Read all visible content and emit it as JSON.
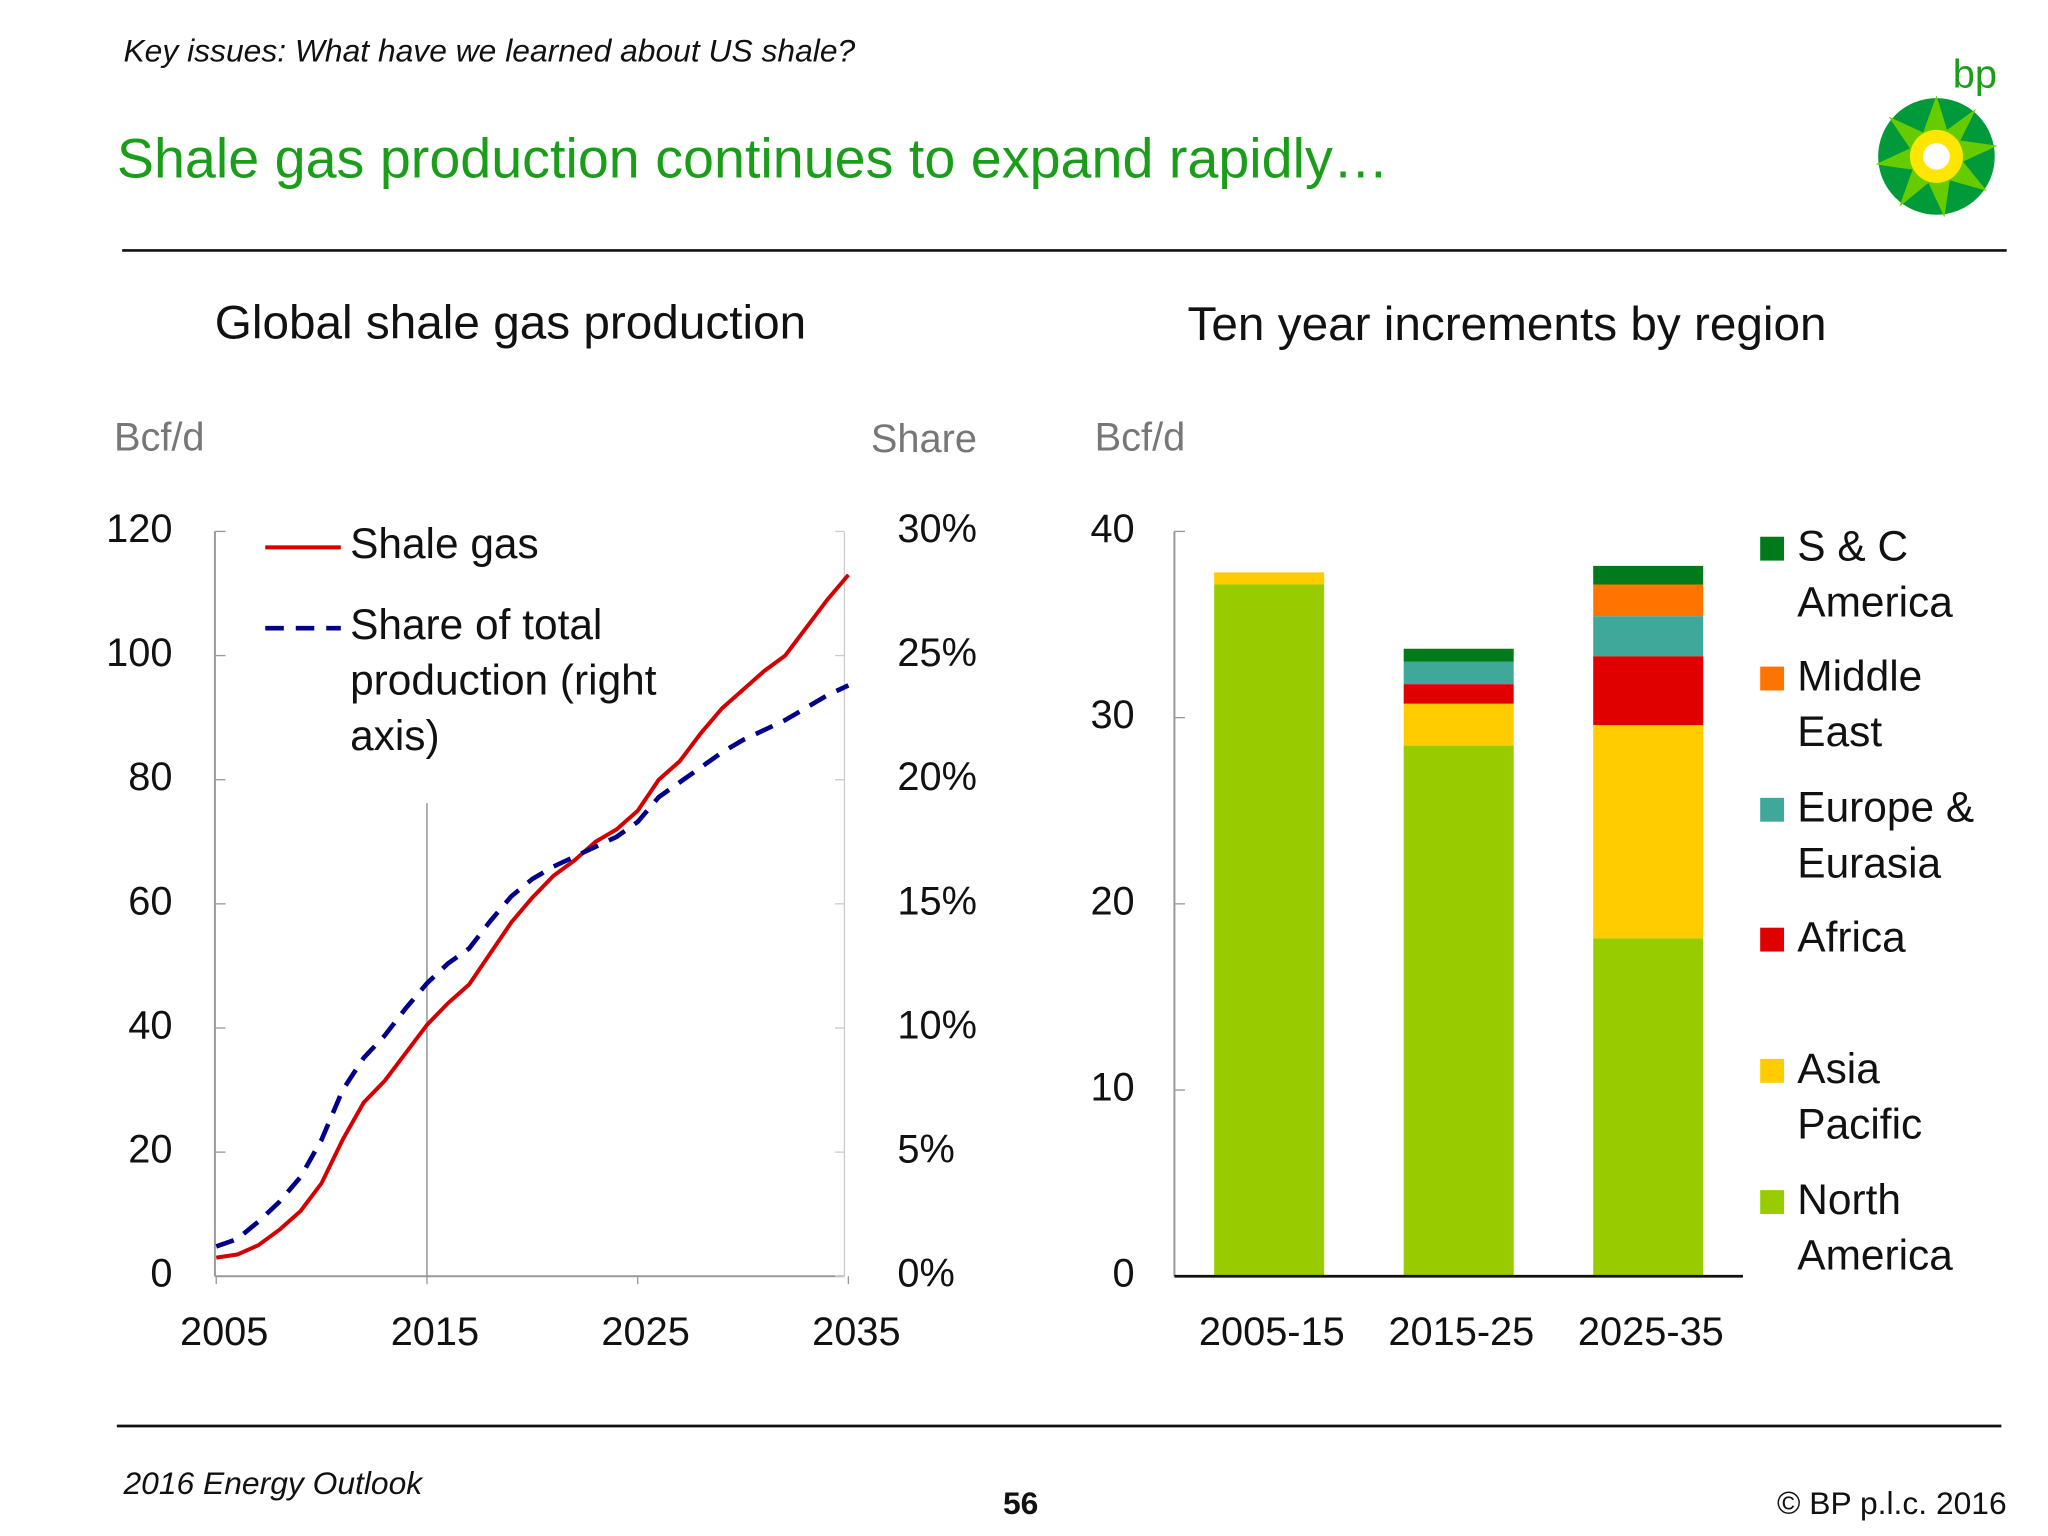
{
  "header": {
    "kicker": "Key issues: What have we learned about US shale?",
    "title": "Shale gas production continues to expand rapidly…",
    "logo": "bp"
  },
  "footer": {
    "left": "2016 Energy Outlook",
    "page": "56",
    "right": "© BP p.l.c. 2016"
  },
  "chart_data": [
    {
      "type": "line",
      "title": "Global shale gas production",
      "y_label": "Bcf/d",
      "y2_label": "Share",
      "x": [
        2005,
        2006,
        2007,
        2008,
        2009,
        2010,
        2011,
        2012,
        2013,
        2014,
        2015,
        2016,
        2017,
        2018,
        2019,
        2020,
        2021,
        2022,
        2023,
        2024,
        2025,
        2026,
        2027,
        2028,
        2029,
        2030,
        2031,
        2032,
        2033,
        2034,
        2035
      ],
      "xlim": [
        2005,
        2035
      ],
      "xticks": [
        2005,
        2015,
        2025,
        2035
      ],
      "vline_x": 2015,
      "ylim": [
        0,
        120
      ],
      "yticks": [
        0,
        20,
        40,
        60,
        80,
        100,
        120
      ],
      "y2lim": [
        0,
        30
      ],
      "y2ticks": [
        {
          "value": 0,
          "label": "0%"
        },
        {
          "value": 5,
          "label": "5%"
        },
        {
          "value": 10,
          "label": "10%"
        },
        {
          "value": 15,
          "label": "15%"
        },
        {
          "value": 20,
          "label": "20%"
        },
        {
          "value": 25,
          "label": "25%"
        },
        {
          "value": 30,
          "label": "30%"
        }
      ],
      "series": [
        {
          "name": "Shale gas",
          "color": "#d40000",
          "values": [
            3,
            3.5,
            5,
            7.5,
            10.5,
            15,
            22,
            28,
            31.5,
            36,
            40.5,
            44,
            47,
            52,
            57,
            61,
            64.5,
            67,
            70,
            72,
            75,
            80,
            83,
            87.5,
            91.5,
            94.5,
            97.5,
            100,
            104.5,
            109,
            113
          ]
        },
        {
          "name": "Share of total production (right axis)",
          "color": "#00008b",
          "axis": "y2",
          "dashed": true,
          "values": [
            1.2,
            1.5,
            2.2,
            3,
            4,
            5.5,
            7.5,
            8.8,
            9.7,
            10.8,
            11.8,
            12.6,
            13.2,
            14.3,
            15.3,
            16,
            16.5,
            16.9,
            17.3,
            17.7,
            18.3,
            19.3,
            19.9,
            20.5,
            21.1,
            21.6,
            22,
            22.4,
            22.9,
            23.4,
            23.8
          ]
        }
      ]
    },
    {
      "type": "stacked_bar",
      "title": "Ten year increments by region",
      "y_label": "Bcf/d",
      "categories": [
        "2005-15",
        "2015-25",
        "2025-35"
      ],
      "ylim": [
        0,
        40
      ],
      "yticks": [
        0,
        10,
        20,
        30,
        40
      ],
      "series": [
        {
          "name": "North America",
          "color": "#99cc00",
          "values": [
            37.15,
            28.5,
            18.15
          ]
        },
        {
          "name": "Asia Pacific",
          "color": "#ffcc00",
          "values": [
            0.65,
            2.25,
            11.45
          ]
        },
        {
          "name": "Africa",
          "color": "#e00000",
          "values": [
            0,
            1.05,
            3.7
          ]
        },
        {
          "name": "Europe & Eurasia",
          "color": "#3fa89a",
          "values": [
            0,
            1.2,
            2.15
          ]
        },
        {
          "name": "Middle East",
          "color": "#ff7300",
          "values": [
            0,
            0,
            1.7
          ]
        },
        {
          "name": "S & C America",
          "color": "#007a1a",
          "values": [
            0,
            0.7,
            1.0
          ]
        }
      ]
    }
  ]
}
